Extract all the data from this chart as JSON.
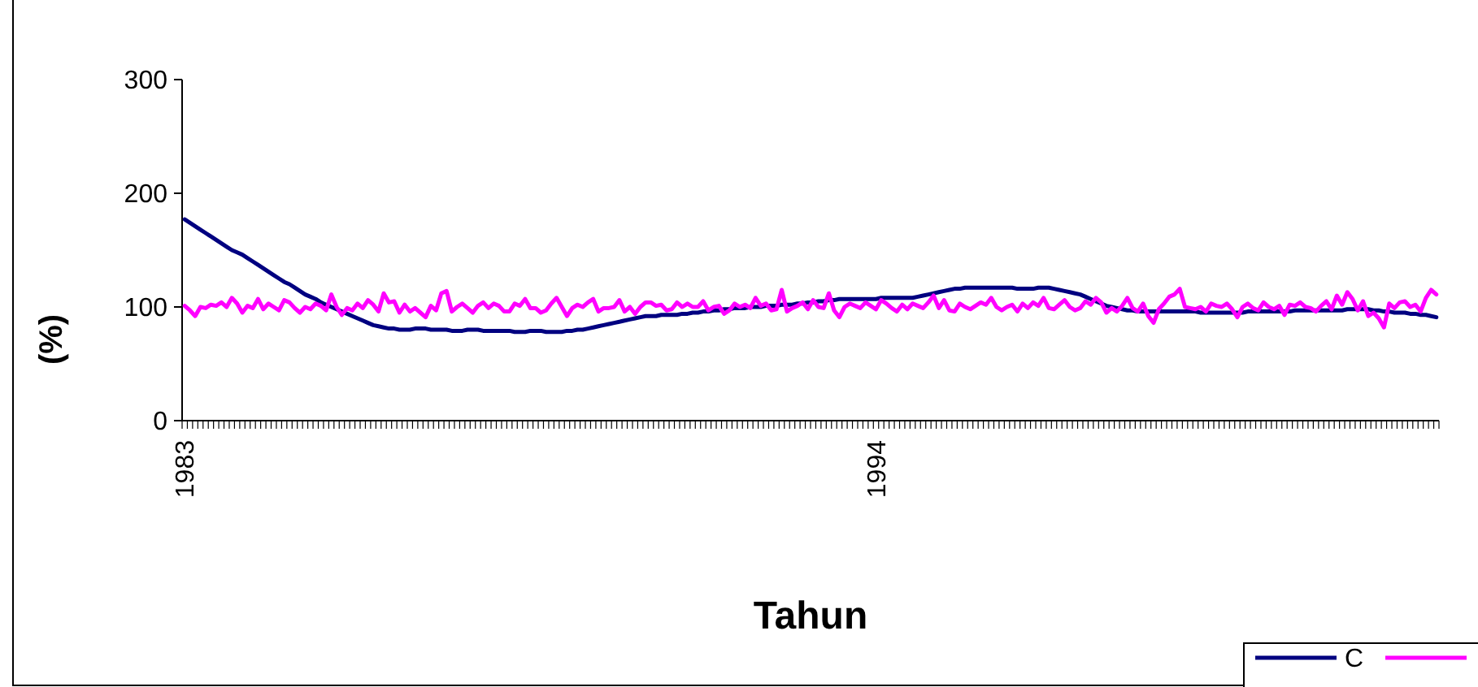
{
  "chart_data": {
    "type": "line",
    "xlabel": "Tahun",
    "ylabel": "(%)",
    "ylim": [
      0,
      300
    ],
    "yticks": [
      0,
      100,
      200,
      300
    ],
    "grid": false,
    "legend": "bottom right",
    "marker": "none",
    "line_style": "solid",
    "categories": [
      "1983",
      null,
      null,
      null,
      null,
      null,
      null,
      null,
      null,
      null,
      null,
      null,
      null,
      null,
      null,
      null,
      null,
      null,
      null,
      null,
      null,
      null,
      null,
      null,
      null,
      null,
      null,
      null,
      null,
      null,
      null,
      null,
      null,
      null,
      null,
      null,
      null,
      null,
      null,
      null,
      null,
      null,
      null,
      null,
      null,
      null,
      null,
      null,
      null,
      null,
      null,
      null,
      null,
      null,
      null,
      null,
      null,
      null,
      null,
      null,
      null,
      null,
      null,
      null,
      null,
      null,
      null,
      null,
      null,
      null,
      null,
      null,
      null,
      null,
      null,
      null,
      null,
      null,
      null,
      null,
      null,
      null,
      null,
      null,
      null,
      null,
      null,
      null,
      null,
      null,
      null,
      null,
      null,
      null,
      null,
      null,
      null,
      null,
      null,
      null,
      null,
      null,
      null,
      null,
      null,
      null,
      null,
      null,
      null,
      null,
      null,
      null,
      null,
      null,
      null,
      null,
      null,
      null,
      null,
      null,
      null,
      null,
      null,
      null,
      null,
      null,
      null,
      null,
      null,
      null,
      null,
      null,
      "1994",
      null,
      null,
      null,
      null,
      null,
      null,
      null,
      null,
      null,
      null,
      null,
      null,
      null,
      null,
      null,
      null,
      null,
      null,
      null,
      null,
      null,
      null,
      null,
      null,
      null,
      null,
      null,
      null,
      null,
      null,
      null,
      null,
      null,
      null,
      null,
      null,
      null,
      null,
      null,
      null,
      null,
      null,
      null,
      null,
      null,
      null,
      null,
      null,
      null,
      null,
      null,
      null,
      null,
      null,
      null,
      null,
      null,
      null,
      null,
      null,
      null,
      null,
      null,
      null,
      null,
      null,
      null,
      null,
      null,
      null,
      null,
      null,
      null,
      null,
      null,
      null,
      null,
      null,
      null,
      null,
      null,
      null,
      null,
      null,
      null,
      null,
      null,
      null,
      null,
      null,
      null,
      null,
      null,
      null,
      null,
      null,
      null,
      null,
      null,
      null,
      null,
      null,
      null,
      null,
      null,
      null,
      null
    ],
    "series": [
      {
        "name": "C",
        "color": "#000080",
        "values": [
          177,
          174,
          171,
          168,
          165,
          162,
          159,
          156,
          153,
          150,
          148,
          146,
          143,
          140,
          137,
          134,
          131,
          128,
          125,
          122,
          120,
          117,
          114,
          111,
          109,
          107,
          104,
          102,
          100,
          98,
          96,
          94,
          92,
          90,
          88,
          86,
          84,
          83,
          82,
          81,
          81,
          80,
          80,
          80,
          81,
          81,
          81,
          80,
          80,
          80,
          80,
          79,
          79,
          79,
          80,
          80,
          80,
          79,
          79,
          79,
          79,
          79,
          79,
          78,
          78,
          78,
          79,
          79,
          79,
          78,
          78,
          78,
          78,
          79,
          79,
          80,
          80,
          81,
          82,
          83,
          84,
          85,
          86,
          87,
          88,
          89,
          90,
          91,
          92,
          92,
          92,
          93,
          93,
          93,
          93,
          94,
          94,
          95,
          95,
          96,
          96,
          97,
          97,
          98,
          98,
          99,
          99,
          99,
          100,
          100,
          100,
          101,
          101,
          101,
          102,
          102,
          102,
          103,
          103,
          104,
          104,
          105,
          105,
          106,
          106,
          107,
          107,
          107,
          107,
          107,
          107,
          107,
          107,
          108,
          108,
          108,
          108,
          108,
          108,
          108,
          109,
          110,
          111,
          112,
          113,
          114,
          115,
          116,
          116,
          117,
          117,
          117,
          117,
          117,
          117,
          117,
          117,
          117,
          117,
          116,
          116,
          116,
          116,
          117,
          117,
          117,
          116,
          115,
          114,
          113,
          112,
          111,
          109,
          107,
          105,
          103,
          101,
          100,
          99,
          98,
          97,
          97,
          96,
          96,
          96,
          96,
          96,
          96,
          96,
          96,
          96,
          96,
          96,
          96,
          95,
          95,
          95,
          95,
          95,
          95,
          95,
          95,
          95,
          96,
          96,
          96,
          96,
          96,
          96,
          96,
          96,
          96,
          97,
          97,
          97,
          97,
          97,
          97,
          97,
          97,
          97,
          97,
          98,
          98,
          98,
          98,
          98,
          97,
          97,
          96,
          96,
          95,
          95,
          95,
          94,
          94,
          93,
          93,
          92,
          91
        ]
      },
      {
        "color": "#ff00ff",
        "values": [
          101,
          97,
          92,
          100,
          99,
          102,
          101,
          104,
          100,
          108,
          103,
          95,
          101,
          99,
          107,
          98,
          103,
          100,
          97,
          106,
          104,
          99,
          95,
          100,
          98,
          103,
          101,
          97,
          111,
          100,
          93,
          99,
          97,
          103,
          99,
          106,
          102,
          96,
          112,
          104,
          105,
          95,
          102,
          96,
          99,
          95,
          91,
          101,
          97,
          112,
          114,
          96,
          100,
          103,
          99,
          95,
          101,
          104,
          99,
          103,
          101,
          96,
          96,
          103,
          101,
          107,
          99,
          99,
          95,
          97,
          103,
          108,
          100,
          92,
          99,
          102,
          100,
          104,
          107,
          96,
          99,
          99,
          100,
          106,
          96,
          100,
          94,
          100,
          104,
          104,
          101,
          102,
          97,
          98,
          104,
          100,
          103,
          100,
          100,
          105,
          97,
          100,
          101,
          94,
          97,
          103,
          100,
          102,
          99,
          108,
          101,
          103,
          97,
          98,
          115,
          96,
          99,
          101,
          104,
          98,
          106,
          100,
          99,
          112,
          97,
          91,
          100,
          103,
          101,
          99,
          104,
          101,
          98,
          106,
          103,
          99,
          96,
          102,
          98,
          103,
          101,
          99,
          104,
          110,
          99,
          106,
          97,
          96,
          103,
          100,
          98,
          101,
          104,
          102,
          108,
          100,
          97,
          100,
          102,
          96,
          103,
          99,
          104,
          101,
          108,
          99,
          98,
          102,
          106,
          100,
          97,
          99,
          105,
          102,
          108,
          104,
          95,
          99,
          96,
          101,
          108,
          99,
          96,
          103,
          92,
          86,
          98,
          103,
          109,
          111,
          116,
          100,
          99,
          98,
          100,
          96,
          103,
          101,
          100,
          103,
          98,
          91,
          100,
          103,
          99,
          97,
          104,
          100,
          98,
          101,
          93,
          102,
          101,
          104,
          100,
          99,
          96,
          101,
          105,
          98,
          110,
          102,
          113,
          107,
          97,
          105,
          92,
          95,
          90,
          82,
          103,
          99,
          104,
          105,
          100,
          102,
          96,
          108,
          115,
          111
        ]
      }
    ]
  }
}
